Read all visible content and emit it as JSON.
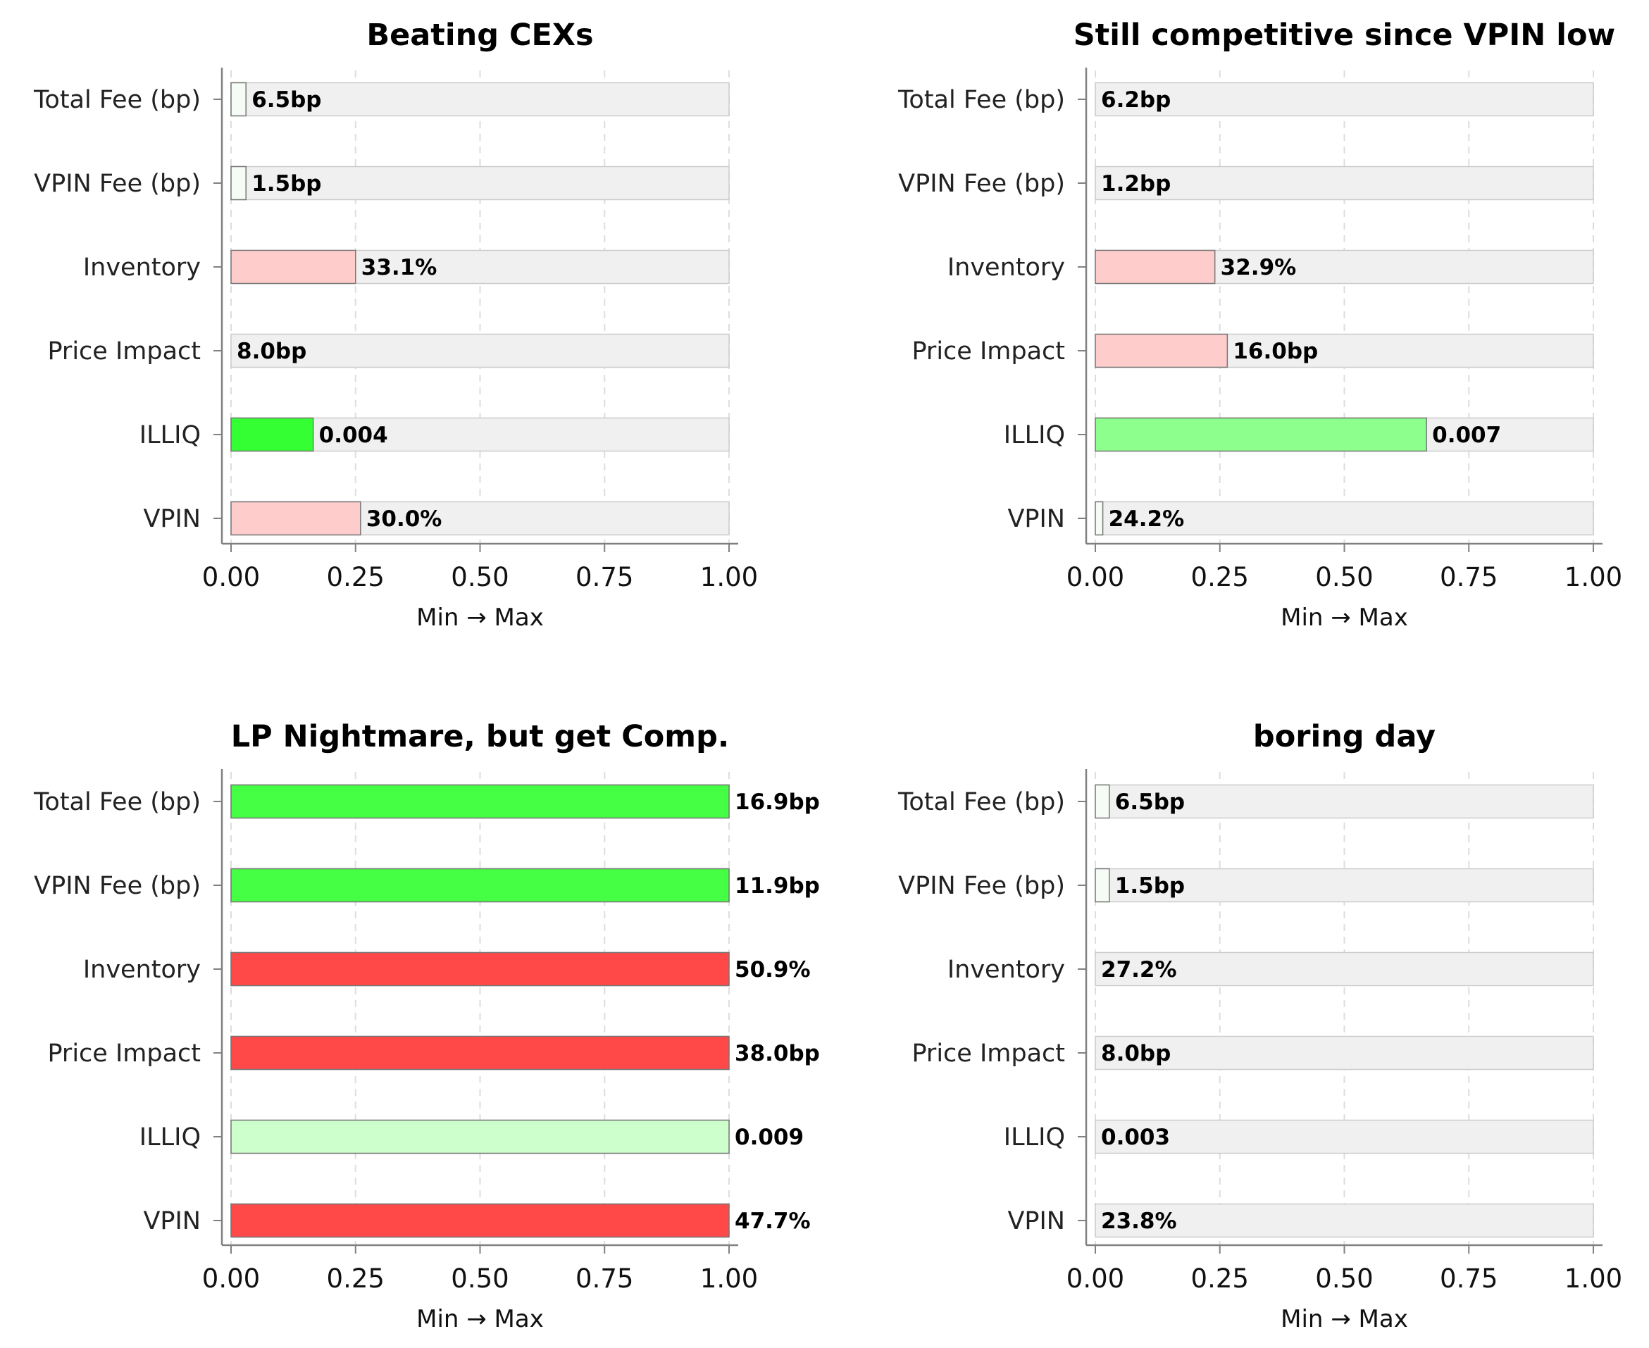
{
  "chart_data": [
    {
      "type": "bar",
      "orientation": "horizontal",
      "title": "Beating CEXs",
      "xlabel": "Min → Max",
      "xlim": [
        0,
        1
      ],
      "xticks": [
        "0.00",
        "0.25",
        "0.50",
        "0.75",
        "1.00"
      ],
      "grid": "vertical dashed",
      "categories": [
        "Total Fee (bp)",
        "VPIN Fee (bp)",
        "Inventory",
        "Price Impact",
        "ILLIQ",
        "VPIN"
      ],
      "values": [
        0.03,
        0.03,
        0.25,
        0.0,
        0.165,
        0.26
      ],
      "labels": [
        "6.5bp",
        "1.5bp",
        "33.1%",
        "8.0bp",
        "0.004",
        "30.0%"
      ],
      "colors": [
        "#f5fbf5",
        "#f5fbf5",
        "#ffcccc",
        "#ffcccc",
        "#33ff33",
        "#ffcccc"
      ]
    },
    {
      "type": "bar",
      "orientation": "horizontal",
      "title": "Still competitive since VPIN low",
      "xlabel": "Min → Max",
      "xlim": [
        0,
        1
      ],
      "xticks": [
        "0.00",
        "0.25",
        "0.50",
        "0.75",
        "1.00"
      ],
      "grid": "vertical dashed",
      "categories": [
        "Total Fee (bp)",
        "VPIN Fee (bp)",
        "Inventory",
        "Price Impact",
        "ILLIQ",
        "VPIN"
      ],
      "values": [
        0.0,
        0.0,
        0.24,
        0.265,
        0.665,
        0.015
      ],
      "labels": [
        "6.2bp",
        "1.2bp",
        "32.9%",
        "16.0bp",
        "0.007",
        "24.2%"
      ],
      "colors": [
        "#f5fbf5",
        "#f5fbf5",
        "#ffcccc",
        "#ffcccc",
        "#8cff8c",
        "#f5fbf5"
      ]
    },
    {
      "type": "bar",
      "orientation": "horizontal",
      "title": "LP Nightmare, but get Comp.",
      "xlabel": "Min → Max",
      "xlim": [
        0,
        1
      ],
      "xticks": [
        "0.00",
        "0.25",
        "0.50",
        "0.75",
        "1.00"
      ],
      "grid": "vertical dashed",
      "categories": [
        "Total Fee (bp)",
        "VPIN Fee (bp)",
        "Inventory",
        "Price Impact",
        "ILLIQ",
        "VPIN"
      ],
      "values": [
        1.0,
        1.0,
        1.0,
        1.0,
        1.0,
        1.0
      ],
      "labels": [
        "16.9bp",
        "11.9bp",
        "50.9%",
        "38.0bp",
        "0.009",
        "47.7%"
      ],
      "colors": [
        "#44ff44",
        "#44ff44",
        "#ff4848",
        "#ff4848",
        "#ccffcc",
        "#ff4848"
      ]
    },
    {
      "type": "bar",
      "orientation": "horizontal",
      "title": "boring day",
      "xlabel": "Min → Max",
      "xlim": [
        0,
        1
      ],
      "xticks": [
        "0.00",
        "0.25",
        "0.50",
        "0.75",
        "1.00"
      ],
      "grid": "vertical dashed",
      "categories": [
        "Total Fee (bp)",
        "VPIN Fee (bp)",
        "Inventory",
        "Price Impact",
        "ILLIQ",
        "VPIN"
      ],
      "values": [
        0.028,
        0.028,
        0.0,
        0.0,
        0.0,
        0.0
      ],
      "labels": [
        "6.5bp",
        "1.5bp",
        "27.2%",
        "8.0bp",
        "0.003",
        "23.8%"
      ],
      "colors": [
        "#f5fbf5",
        "#f5fbf5",
        "#f5fbf5",
        "#f5fbf5",
        "#f5fbf5",
        "#f5fbf5"
      ]
    }
  ],
  "colors": {
    "track_fill": "#f0f0f0",
    "track_stroke": "#cccccc",
    "bar_stroke": "#777777",
    "axis": "#808080",
    "grid": "#dddddd"
  }
}
